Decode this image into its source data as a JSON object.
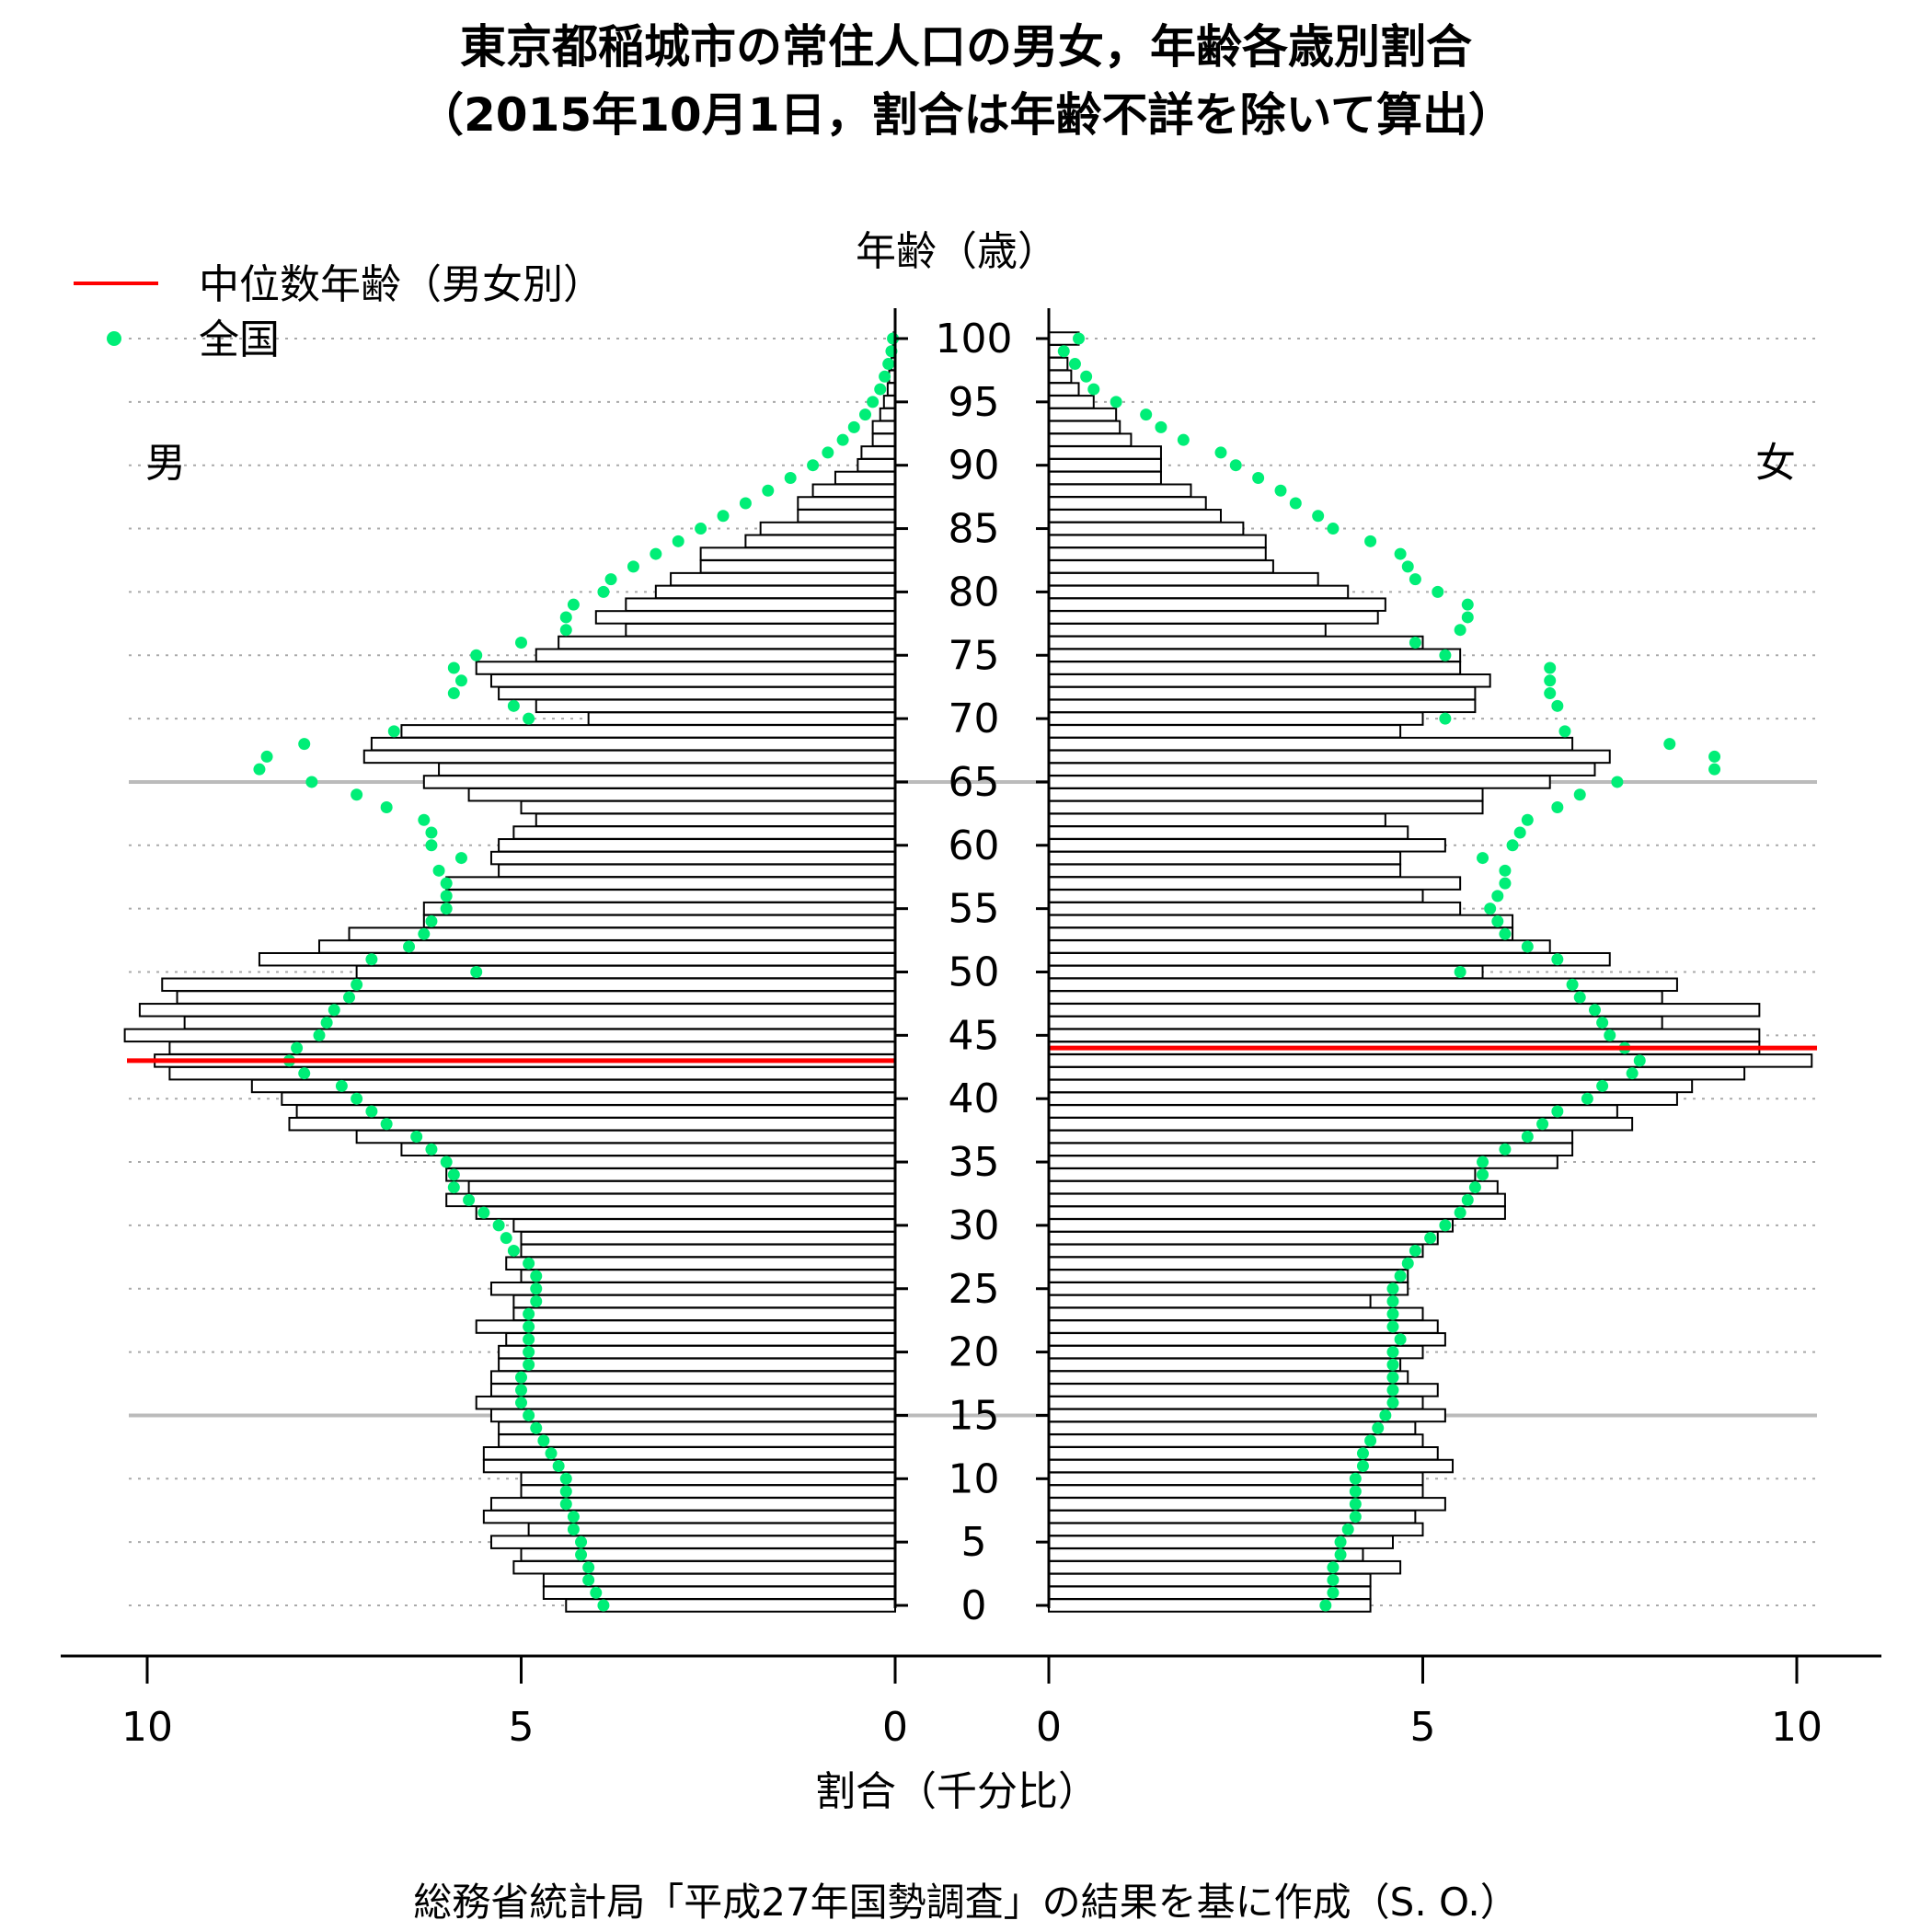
{
  "chart_data": {
    "type": "bar",
    "orientation": "horizontal-pyramid",
    "title": "東京都稲城市の常住人口の男女，年齢各歳別割合",
    "subtitle": "（2015年10月1日，割合は年齢不詳を除いて算出）",
    "xlabel": "割合（千分比）",
    "ylabel": "年齢（歳）",
    "source": "総務省統計局「平成27年国勢調査」の結果を基に作成（S. O.）",
    "left_label": "男",
    "right_label": "女",
    "legend": {
      "position": "top-left",
      "items": [
        {
          "label": "中位数年齢（男女別）",
          "kind": "line",
          "color": "#ff0000"
        },
        {
          "label": "全国",
          "kind": "dot",
          "color": "#00ee77"
        }
      ]
    },
    "x_ticks": [
      "10",
      "5",
      "0",
      "0",
      "5",
      "10"
    ],
    "x_tick_values": {
      "male": [
        10,
        5,
        0
      ],
      "female": [
        0,
        5,
        10
      ]
    },
    "xlim": [
      0,
      10.5
    ],
    "y_ticks": [
      "0",
      "5",
      "10",
      "15",
      "20",
      "25",
      "30",
      "35",
      "40",
      "45",
      "50",
      "55",
      "60",
      "65",
      "70",
      "75",
      "80",
      "85",
      "90",
      "95",
      "100"
    ],
    "y_tick_values": [
      0,
      5,
      10,
      15,
      20,
      25,
      30,
      35,
      40,
      45,
      50,
      55,
      60,
      65,
      70,
      75,
      80,
      85,
      90,
      95,
      100
    ],
    "ylim": [
      0,
      100
    ],
    "reference_ages": [
      15,
      65
    ],
    "grid": "dotted every 5 years",
    "ages": [
      0,
      1,
      2,
      3,
      4,
      5,
      6,
      7,
      8,
      9,
      10,
      11,
      12,
      13,
      14,
      15,
      16,
      17,
      18,
      19,
      20,
      21,
      22,
      23,
      24,
      25,
      26,
      27,
      28,
      29,
      30,
      31,
      32,
      33,
      34,
      35,
      36,
      37,
      38,
      39,
      40,
      41,
      42,
      43,
      44,
      45,
      46,
      47,
      48,
      49,
      50,
      51,
      52,
      53,
      54,
      55,
      56,
      57,
      58,
      59,
      60,
      61,
      62,
      63,
      64,
      65,
      66,
      67,
      68,
      69,
      70,
      71,
      72,
      73,
      74,
      75,
      76,
      77,
      78,
      79,
      80,
      81,
      82,
      83,
      84,
      85,
      86,
      87,
      88,
      89,
      90,
      91,
      92,
      93,
      94,
      95,
      96,
      97,
      98,
      99,
      100
    ],
    "median_age": {
      "male": 43,
      "female": 44
    },
    "series": [
      {
        "name": "男",
        "side": "left",
        "values": [
          4.4,
          4.7,
          4.7,
          5.1,
          5.0,
          5.4,
          4.9,
          5.5,
          5.4,
          5.0,
          5.0,
          5.5,
          5.5,
          5.3,
          5.3,
          5.4,
          5.6,
          5.4,
          5.4,
          5.3,
          5.3,
          5.2,
          5.6,
          5.1,
          5.1,
          5.4,
          5.0,
          5.2,
          5.0,
          5.0,
          5.1,
          5.6,
          6.0,
          5.7,
          6.0,
          6.0,
          6.6,
          7.2,
          8.1,
          8.0,
          8.2,
          8.6,
          9.7,
          9.9,
          9.7,
          10.3,
          9.5,
          10.1,
          9.6,
          9.8,
          7.2,
          8.5,
          7.7,
          7.3,
          6.3,
          6.3,
          6.0,
          6.0,
          5.3,
          5.4,
          5.3,
          5.1,
          4.8,
          5.0,
          5.7,
          6.3,
          6.1,
          7.1,
          7.0,
          6.6,
          4.1,
          4.8,
          5.3,
          5.4,
          5.6,
          4.8,
          4.5,
          3.6,
          4.0,
          3.6,
          3.2,
          3.0,
          2.6,
          2.6,
          2.0,
          1.8,
          1.3,
          1.3,
          1.1,
          0.8,
          0.5,
          0.45,
          0.3,
          0.3,
          0.2,
          0.15,
          0.1,
          0.08,
          0.05,
          0.03,
          0.02
        ]
      },
      {
        "name": "女",
        "side": "right",
        "values": [
          4.3,
          4.3,
          4.3,
          4.7,
          4.2,
          4.6,
          5.0,
          4.9,
          5.3,
          5.0,
          5.0,
          5.4,
          5.2,
          5.0,
          4.9,
          5.3,
          5.0,
          5.2,
          4.8,
          4.7,
          5.0,
          5.3,
          5.2,
          5.0,
          4.3,
          4.8,
          4.8,
          4.8,
          5.0,
          5.2,
          5.4,
          6.1,
          6.1,
          6.0,
          5.7,
          6.8,
          7.0,
          7.0,
          7.8,
          7.6,
          8.4,
          8.6,
          9.3,
          10.2,
          9.5,
          9.5,
          8.2,
          9.5,
          8.2,
          8.4,
          5.8,
          7.5,
          6.7,
          6.2,
          6.2,
          5.5,
          5.0,
          5.5,
          4.7,
          4.7,
          5.3,
          4.8,
          4.5,
          5.8,
          5.8,
          6.7,
          7.3,
          7.5,
          7.0,
          4.7,
          5.0,
          5.7,
          5.7,
          5.9,
          5.5,
          5.5,
          5.0,
          3.7,
          4.4,
          4.5,
          4.0,
          3.6,
          3.0,
          2.9,
          2.9,
          2.6,
          2.3,
          2.1,
          1.9,
          1.5,
          1.5,
          1.5,
          1.1,
          0.95,
          0.9,
          0.6,
          0.4,
          0.3,
          0.25,
          0.2,
          0.4
        ]
      },
      {
        "name": "全国",
        "side": "both",
        "kind": "dots",
        "male_values": [
          3.9,
          4.0,
          4.1,
          4.1,
          4.2,
          4.2,
          4.3,
          4.3,
          4.4,
          4.4,
          4.4,
          4.5,
          4.6,
          4.7,
          4.8,
          4.9,
          5.0,
          5.0,
          5.0,
          4.9,
          4.9,
          4.9,
          4.9,
          4.9,
          4.8,
          4.8,
          4.8,
          4.9,
          5.1,
          5.2,
          5.3,
          5.5,
          5.7,
          5.9,
          5.9,
          6.0,
          6.2,
          6.4,
          6.8,
          7.0,
          7.2,
          7.4,
          7.9,
          8.1,
          8.0,
          7.7,
          7.6,
          7.5,
          7.3,
          7.2,
          5.6,
          7.0,
          6.5,
          6.3,
          6.2,
          6.0,
          6.0,
          6.0,
          6.1,
          5.8,
          6.2,
          6.2,
          6.3,
          6.8,
          7.2,
          7.8,
          8.5,
          8.4,
          7.9,
          6.7,
          4.9,
          5.1,
          5.9,
          5.8,
          5.9,
          5.6,
          5.0,
          4.4,
          4.4,
          4.3,
          3.9,
          3.8,
          3.5,
          3.2,
          2.9,
          2.6,
          2.3,
          2.0,
          1.7,
          1.4,
          1.1,
          0.9,
          0.7,
          0.55,
          0.4,
          0.3,
          0.2,
          0.14,
          0.09,
          0.05,
          0.03
        ],
        "female_values": [
          3.7,
          3.8,
          3.8,
          3.8,
          3.9,
          3.9,
          4.0,
          4.1,
          4.1,
          4.1,
          4.1,
          4.2,
          4.2,
          4.3,
          4.4,
          4.5,
          4.6,
          4.6,
          4.6,
          4.6,
          4.6,
          4.7,
          4.6,
          4.6,
          4.6,
          4.6,
          4.7,
          4.8,
          4.9,
          5.1,
          5.3,
          5.5,
          5.6,
          5.7,
          5.8,
          5.8,
          6.1,
          6.4,
          6.6,
          6.8,
          7.2,
          7.4,
          7.8,
          7.9,
          7.7,
          7.5,
          7.4,
          7.3,
          7.1,
          7.0,
          5.5,
          6.8,
          6.4,
          6.1,
          6.0,
          5.9,
          6.0,
          6.1,
          6.1,
          5.8,
          6.2,
          6.3,
          6.4,
          6.8,
          7.1,
          7.6,
          8.9,
          8.9,
          8.3,
          6.9,
          5.3,
          6.8,
          6.7,
          6.7,
          6.7,
          5.3,
          4.9,
          5.5,
          5.6,
          5.6,
          5.2,
          4.9,
          4.8,
          4.7,
          4.3,
          3.8,
          3.6,
          3.3,
          3.1,
          2.8,
          2.5,
          2.3,
          1.8,
          1.5,
          1.3,
          0.9,
          0.6,
          0.5,
          0.35,
          0.2,
          0.4
        ]
      }
    ]
  }
}
